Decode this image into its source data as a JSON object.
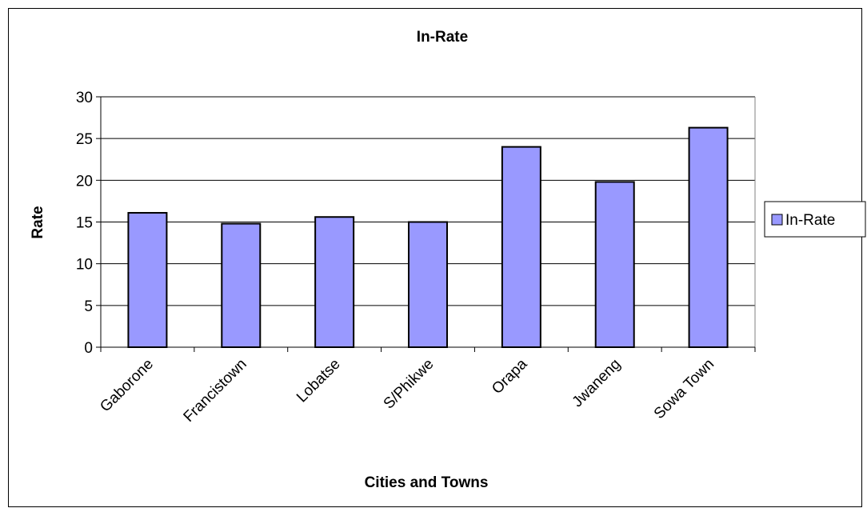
{
  "chart_data": {
    "type": "bar",
    "title": "In-Rate",
    "xlabel": "Cities and Towns",
    "ylabel": "Rate",
    "categories": [
      "Gaborone",
      "Francistown",
      "Lobatse",
      "S/Phikwe",
      "Orapa",
      "Jwaneng",
      "Sowa Town"
    ],
    "series": [
      {
        "name": "In-Rate",
        "values": [
          16.1,
          14.8,
          15.6,
          15.0,
          24.0,
          19.8,
          26.3
        ],
        "color": "#9999ff"
      }
    ],
    "ylim": [
      0,
      30
    ],
    "yticks": [
      0,
      5,
      10,
      15,
      20,
      25,
      30
    ],
    "grid": true,
    "legend_position": "right"
  }
}
